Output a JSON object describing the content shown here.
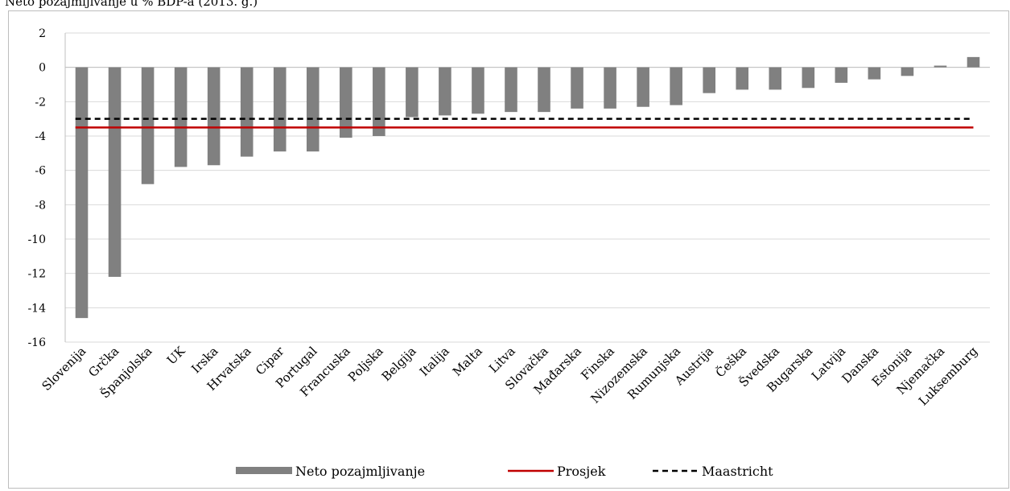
{
  "header_fragment": "Neto pozajmljivanje u % BDP-a (2013. g.)",
  "chart_data": {
    "type": "bar",
    "categories": [
      "Slovenija",
      "Grčka",
      "Španjolska",
      "UK",
      "Irska",
      "Hrvatska",
      "Cipar",
      "Portugal",
      "Francuska",
      "Poljska",
      "Belgija",
      "Italija",
      "Malta",
      "Litva",
      "Slovačka",
      "Mađarska",
      "Finska",
      "Nizozemska",
      "Rumunjska",
      "Austrija",
      "Češka",
      "Švedska",
      "Bugarska",
      "Latvija",
      "Danska",
      "Estonija",
      "Njemačka",
      "Luksemburg"
    ],
    "series": [
      {
        "name": "Neto pozajmljivanje",
        "type": "bar",
        "color": "#808080",
        "values": [
          -14.6,
          -12.2,
          -6.8,
          -5.8,
          -5.7,
          -5.2,
          -4.9,
          -4.9,
          -4.1,
          -4.0,
          -2.9,
          -2.8,
          -2.7,
          -2.6,
          -2.6,
          -2.4,
          -2.4,
          -2.3,
          -2.2,
          -1.5,
          -1.3,
          -1.3,
          -1.2,
          -0.9,
          -0.7,
          -0.5,
          0.1,
          0.6
        ]
      },
      {
        "name": "Prosjek",
        "type": "line",
        "style": "solid",
        "color": "#c00000",
        "value": -3.5
      },
      {
        "name": "Maastricht",
        "type": "line",
        "style": "dashed",
        "color": "#000000",
        "value": -3.0
      }
    ],
    "y_ticks": [
      "2",
      "0",
      "-2",
      "-4",
      "-6",
      "-8",
      "-10",
      "-12",
      "-14",
      "-16"
    ],
    "ylim": [
      -16,
      2
    ],
    "grid": true,
    "legend_position": "bottom"
  }
}
